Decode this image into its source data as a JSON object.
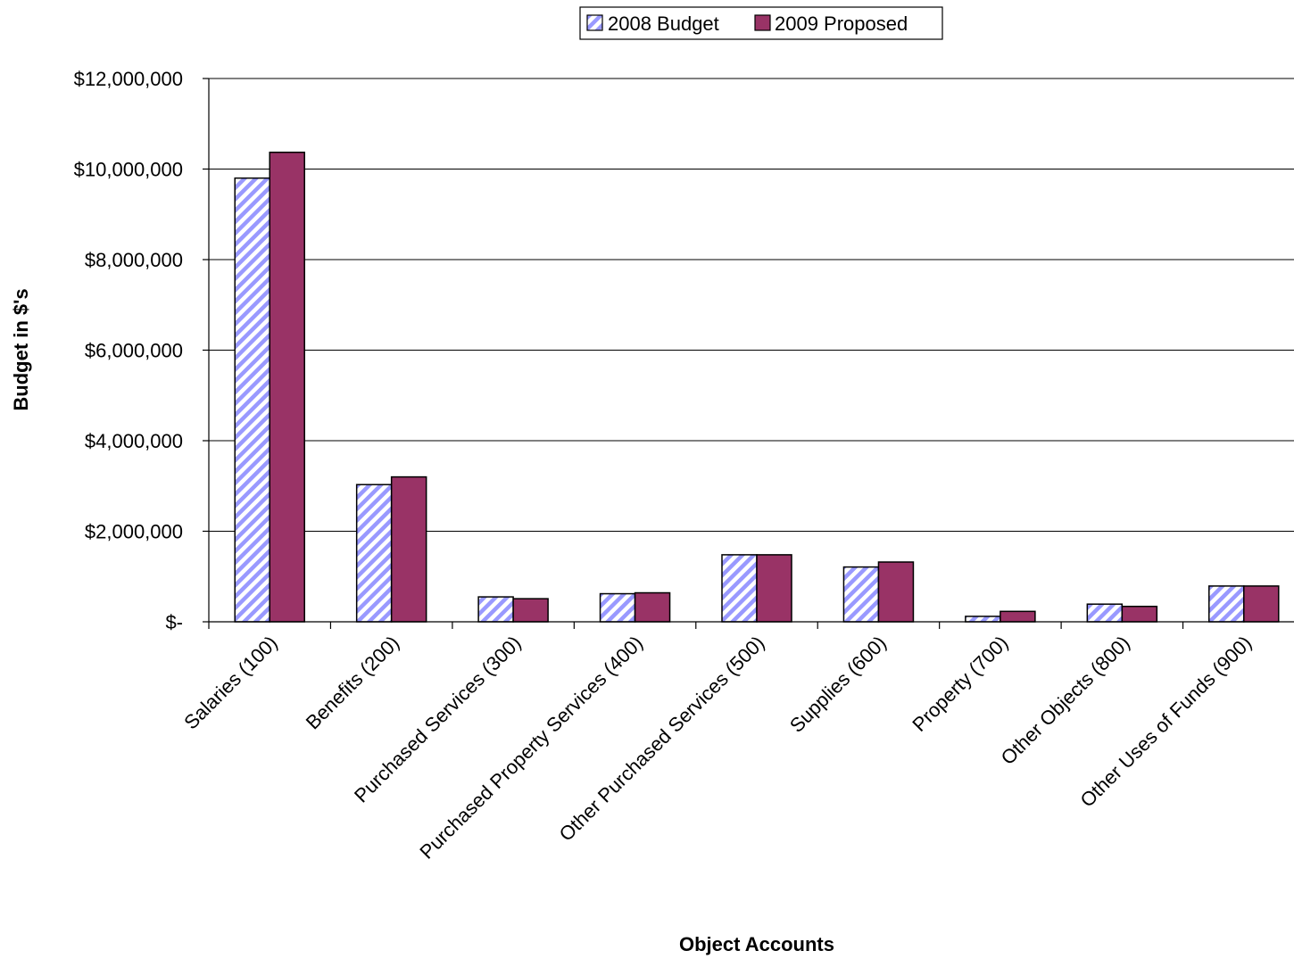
{
  "chart_data": {
    "type": "bar",
    "title": "",
    "xlabel": "Object Accounts",
    "ylabel": "Budget in $'s",
    "ylim": [
      0,
      12000000
    ],
    "yticks": [
      0,
      2000000,
      4000000,
      6000000,
      8000000,
      10000000,
      12000000
    ],
    "ytick_labels": [
      "$-",
      "$2,000,000",
      "$4,000,000",
      "$6,000,000",
      "$8,000,000",
      "$10,000,000",
      "$12,000,000"
    ],
    "grid": "horizontal",
    "legend_position": "top-center",
    "categories": [
      "Salaries (100)",
      "Benefits (200)",
      "Purchased Services (300)",
      "Purchased Property Services (400)",
      "Other Purchased Services (500)",
      "Supplies (600)",
      "Property (700)",
      "Other Objects (800)",
      "Other Uses of Funds (900)"
    ],
    "series": [
      {
        "name": "2008 Budget",
        "pattern": "diagonal-hatch",
        "color": "#9999ff",
        "values": [
          9800000,
          3030000,
          550000,
          620000,
          1480000,
          1210000,
          120000,
          390000,
          790000
        ]
      },
      {
        "name": "2009 Proposed",
        "pattern": "solid",
        "color": "#993366",
        "values": [
          10370000,
          3200000,
          510000,
          640000,
          1480000,
          1320000,
          230000,
          340000,
          790000
        ]
      }
    ]
  }
}
